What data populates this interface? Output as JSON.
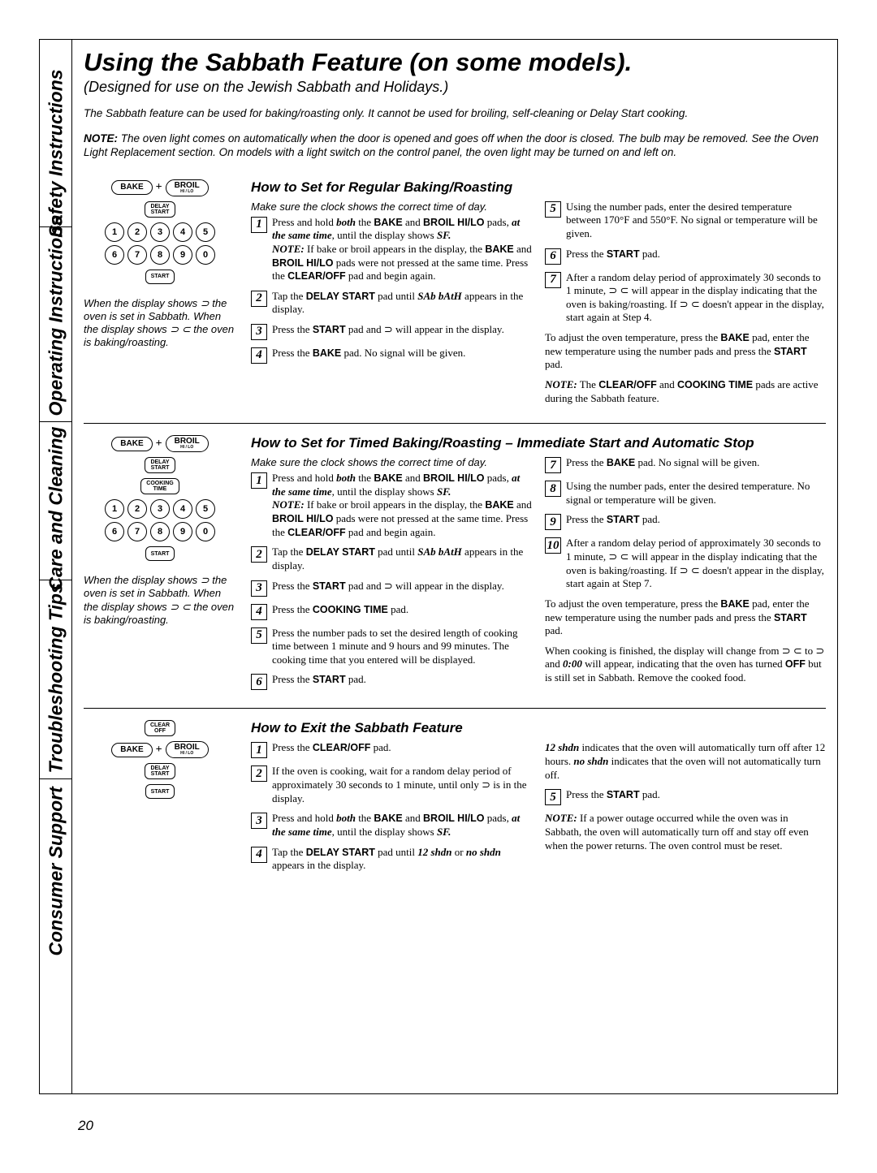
{
  "sidebar": {
    "labels": [
      "Safety Instructions",
      "Operating Instructions",
      "Care and Cleaning",
      "Troubleshooting Tips",
      "Consumer Support"
    ],
    "positions": [
      130,
      350,
      565,
      790,
      1015
    ],
    "dividers": [
      230,
      470,
      665,
      910
    ]
  },
  "title": "Using the Sabbath Feature (on some models).",
  "subtitle": "(Designed for use on the Jewish Sabbath and Holidays.)",
  "intro1": "The Sabbath feature can be used for baking/roasting only. It cannot be used for broiling, self-cleaning or Delay Start cooking.",
  "intro2_pre": "NOTE:",
  "intro2": " The oven light comes on automatically when the door is opened and goes off when the door is closed. The bulb may be removed. See the Oven Light Replacement section. On models with a light switch on the control panel, the oven light may be turned on and left on.",
  "buttons": {
    "bake": "BAKE",
    "broil": "BROIL",
    "broil_sub": "HI / LO",
    "delay": "DELAY",
    "delay_sub": "START",
    "cooking": "COOKING",
    "cooking_sub": "TIME",
    "start": "START",
    "clear": "CLEAR",
    "clear_sub": "OFF",
    "plus": "+"
  },
  "numpad": [
    "1",
    "2",
    "3",
    "4",
    "5",
    "6",
    "7",
    "8",
    "9",
    "0"
  ],
  "diag_caption": "When the display shows ⊃ the oven is set in Sabbath. When the display shows ⊃ ⊂ the oven is baking/roasting.",
  "clockline": "Make sure the clock shows the correct time of day.",
  "sec1": {
    "head": "How to Set for Regular Baking/Roasting",
    "left_steps": [
      "Press and hold <b>both</b> the <b>BAKE</b> and <b>BROIL HI/LO</b> pads, <b>at the same time</b>, until the display shows <b>SF.</b><br><b>NOTE:</b> If bake or broil appears in the display, the <b>BAKE</b> and <b>BROIL HI/LO</b> pads were not pressed at the same time. Press the <b>CLEAR/OFF</b> pad and begin again.",
      "Tap the <b>DELAY START</b> pad until <b>SAb bAtH</b> appears in the display.",
      "Press the <b>START</b> pad and ⊃ will appear in the display.",
      "Press the <b>BAKE</b> pad. No signal will be given."
    ],
    "right_steps_start": 5,
    "right_steps": [
      "Using the number pads, enter the desired temperature between 170°F and 550°F. No signal or temperature will be given.",
      "Press the <b>START</b> pad.",
      "After a random delay period of approximately 30 seconds to 1 minute, ⊃ ⊂ will appear in the display indicating that the oven is baking/roasting. If ⊃ ⊂ doesn't appear in the display, start again at Step 4."
    ],
    "right_tail": "To adjust the oven temperature, press the <b>BAKE</b> pad, enter the new temperature using the number pads and press the <b>START</b> pad.",
    "right_note": "<b>NOTE:</b> The <b>CLEAR/OFF</b> and <b>COOKING TIME</b> pads are active during the Sabbath feature."
  },
  "sec2": {
    "head": "How to Set for Timed Baking/Roasting – Immediate Start and Automatic Stop",
    "left_steps": [
      "Press and hold <b>both</b> the <b>BAKE</b> and <b>BROIL HI/LO</b> pads, <b>at the same time</b>, until the display shows <b>SF.</b><br><b>NOTE:</b> If bake or broil appears in the display, the <b>BAKE</b> and <b>BROIL HI/LO</b> pads were not pressed at the same time. Press the <b>CLEAR/OFF</b> pad and begin again.",
      "Tap the <b>DELAY START</b> pad until <b>SAb bAtH</b> appears in the display.",
      "Press the <b>START</b> pad and ⊃ will appear in the display.",
      "Press the <b>COOKING TIME</b> pad.",
      "Press the number pads to set the desired length of cooking time between 1 minute and 9 hours and 99 minutes. The cooking time that you entered will be displayed.",
      "Press the <b>START</b> pad."
    ],
    "right_steps_start": 7,
    "right_steps": [
      "Press the <b>BAKE</b> pad. No signal will be given.",
      "Using the number pads, enter the desired temperature. No signal or temperature will be given.",
      "Press the <b>START</b> pad.",
      "After a random delay period of approximately 30 seconds to 1 minute, ⊃ ⊂ will appear in the display indicating that the oven is baking/roasting. If ⊃ ⊂ doesn't appear in the display, start again at Step 7."
    ],
    "right_tail1": "To adjust the oven temperature, press the <b>BAKE</b> pad, enter the new temperature using the number pads and press the <b>START</b> pad.",
    "right_tail2": "When cooking is finished, the display will change from ⊃ ⊂ to ⊃ and <b>0:00</b> will appear, indicating that the oven has turned <b>OFF</b> but is still set in Sabbath. Remove the cooked food."
  },
  "sec3": {
    "head": "How to Exit the Sabbath Feature",
    "left_steps": [
      "Press the <b>CLEAR/OFF</b> pad.",
      "If the oven is cooking, wait for a random delay period of approximately 30 seconds to 1 minute, until only ⊃ is in the display.",
      "Press and hold <b>both</b> the <b>BAKE</b> and <b>BROIL HI/LO</b> pads, <b>at the same time</b>, until the display shows <b>SF.</b>",
      "Tap the <b>DELAY START</b> pad until <b>12 shdn</b> or <b>no shdn</b> appears in the display."
    ],
    "right_pre": "<b>12 shdn</b> indicates that the oven will automatically turn off after 12 hours. <b>no shdn</b> indicates that the oven will not automatically turn off.",
    "right_steps_start": 5,
    "right_steps": [
      "Press the <b>START</b> pad."
    ],
    "right_note": "<b>NOTE:</b> If a power outage occurred while the oven was in Sabbath, the oven will automatically turn off and stay off even when the power returns. The oven control must be reset."
  },
  "pagenum": "20",
  "colors": {
    "text": "#000000",
    "bg": "#ffffff",
    "border": "#000000"
  }
}
